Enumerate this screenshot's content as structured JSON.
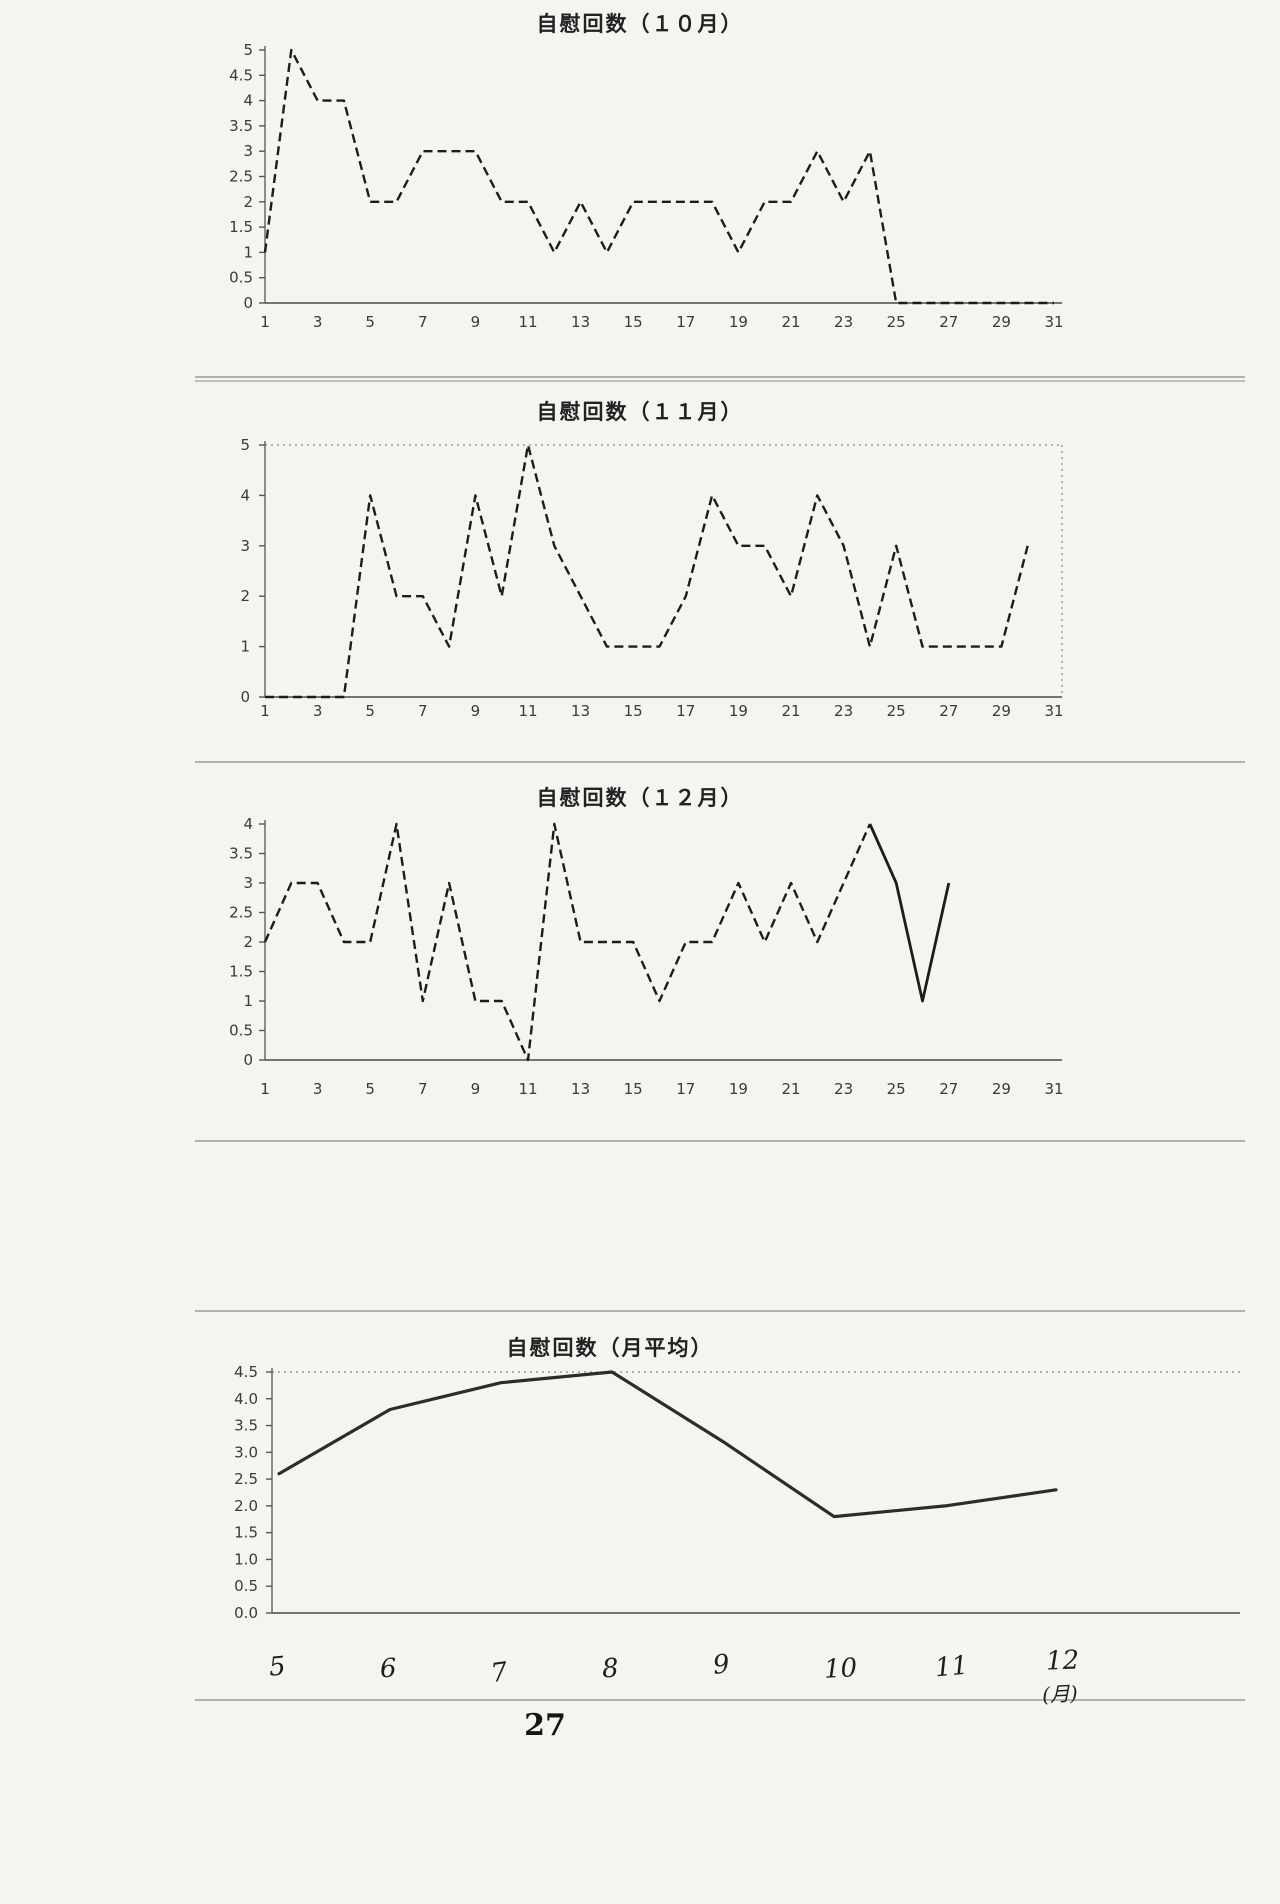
{
  "page": {
    "number": "27"
  },
  "chart_data": [
    {
      "id": "october",
      "type": "line",
      "title": "自慰回数（１０月）",
      "xlabel": "",
      "ylabel": "",
      "ylim": [
        0,
        5
      ],
      "y_tick_step": 0.5,
      "y_tick_labels": [
        "5",
        "4.5",
        "4",
        "3.5",
        "3",
        "2.5",
        "2",
        "1.5",
        "1",
        "0.5",
        "0"
      ],
      "x_tick_labels": [
        "1",
        "3",
        "5",
        "7",
        "9",
        "11",
        "13",
        "15",
        "17",
        "19",
        "21",
        "23",
        "25",
        "27",
        "29",
        "31"
      ],
      "x_range": [
        1,
        31
      ],
      "values": [
        1,
        5,
        4,
        4,
        2,
        2,
        3,
        3,
        3,
        2,
        2,
        1,
        2,
        1,
        2,
        2,
        2,
        2,
        1,
        2,
        2,
        3,
        2,
        3,
        0,
        0,
        0,
        0,
        0,
        0,
        0
      ],
      "line_style": "dashed",
      "grid": false,
      "legend": "none"
    },
    {
      "id": "november",
      "type": "line",
      "title": "自慰回数（１１月）",
      "xlabel": "",
      "ylabel": "",
      "ylim": [
        0,
        5
      ],
      "y_tick_step": 1,
      "y_tick_labels": [
        "5",
        "4",
        "3",
        "2",
        "1",
        "0"
      ],
      "x_tick_labels": [
        "1",
        "3",
        "5",
        "7",
        "9",
        "11",
        "13",
        "15",
        "17",
        "19",
        "21",
        "23",
        "25",
        "27",
        "29",
        "31"
      ],
      "x_range": [
        1,
        30
      ],
      "values": [
        0,
        0,
        0,
        0,
        4,
        2,
        2,
        1,
        4,
        2,
        5,
        3,
        2,
        1,
        1,
        1,
        2,
        4,
        3,
        3,
        2,
        4,
        3,
        1,
        3,
        1,
        1,
        1,
        1,
        3
      ],
      "line_style": "dashed",
      "top_gridline_dotted": true,
      "right_border_dotted": true,
      "grid": false,
      "legend": "none"
    },
    {
      "id": "december",
      "type": "line",
      "title": "自慰回数（１２月）",
      "xlabel": "",
      "ylabel": "",
      "ylim": [
        0,
        4
      ],
      "y_tick_step": 0.5,
      "y_tick_labels": [
        "4",
        "3.5",
        "3",
        "2.5",
        "2",
        "1.5",
        "1",
        "0.5",
        "0"
      ],
      "x_tick_labels": [
        "1",
        "3",
        "5",
        "7",
        "9",
        "11",
        "13",
        "15",
        "17",
        "19",
        "21",
        "23",
        "25",
        "27",
        "29",
        "31"
      ],
      "x_range": [
        1,
        27
      ],
      "values": [
        2,
        3,
        3,
        2,
        2,
        4,
        1,
        3,
        1,
        1,
        0,
        4,
        2,
        2,
        2,
        1,
        2,
        2,
        3,
        2,
        3,
        2,
        3,
        4,
        3,
        1,
        3
      ],
      "line_style": "dashed",
      "solid_tail_from_day": 24,
      "grid": false,
      "legend": "none"
    },
    {
      "id": "monthly-average",
      "type": "line",
      "title": "自慰回数（月平均）",
      "xlabel": "(月)",
      "ylabel": "",
      "ylim": [
        0,
        4.5
      ],
      "y_tick_step": 0.5,
      "y_tick_labels": [
        "4.5",
        "4.0",
        "3.5",
        "3.0",
        "2.5",
        "2.0",
        "1.5",
        "1.0",
        "0.5",
        "0.0"
      ],
      "x_tick_labels": [
        "5",
        "6",
        "7",
        "8",
        "9",
        "10",
        "11",
        "12"
      ],
      "x_axis_unit": "(月)",
      "x_months": [
        5,
        6,
        7,
        8,
        9,
        10,
        11,
        12
      ],
      "values": [
        2.6,
        3.8,
        4.3,
        4.5,
        3.2,
        1.8,
        2.0,
        2.3
      ],
      "line_style": "solid",
      "top_gridline_dotted": true,
      "x_labels_handwritten": true,
      "grid": false,
      "legend": "none"
    }
  ]
}
